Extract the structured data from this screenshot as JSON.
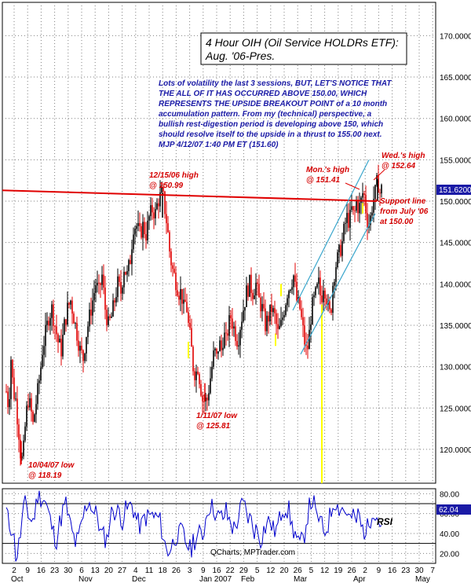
{
  "chart_data": {
    "type": "candlestick",
    "title_line1": "4 Hour OIH (Oil Service HOLDRs ETF):",
    "title_line2": "Aug. '06-Pres.",
    "commentary": [
      "Lots of volatility the last 3 sessions, BUT, LET'S NOTICE THAT",
      "THE ALL OF IT HAS OCCURRED ABOVE 150.00, WHICH",
      "REPRESENTS THE UPSIDE BREAKOUT POINT of a 10 month",
      "accumulation pattern. From my (technical) perspective, a",
      "bullish rest-digestion period is developing above 150, which",
      "should resolve itself to the upside in a thrust to 155.00 next.",
      "MJP  4/12/07  1:40 PM ET (151.60)"
    ],
    "ylim": [
      115,
      172
    ],
    "y_ticks": [
      "120.0000",
      "125.0000",
      "130.0000",
      "135.0000",
      "140.0000",
      "145.0000",
      "150.0000",
      "155.0000",
      "160.0000",
      "165.0000",
      "170.0000"
    ],
    "last_price_label": "151.6200",
    "x_day_ticks": [
      "2",
      "9",
      "16",
      "23",
      "30",
      "6",
      "13",
      "20",
      "27",
      "4",
      "11",
      "18",
      "26",
      "3",
      "9",
      "16",
      "22",
      "29",
      "5",
      "12",
      "20",
      "26",
      "5",
      "12",
      "19",
      "26",
      "2",
      "9",
      "16",
      "23",
      "30",
      "7"
    ],
    "x_months": [
      "Oct",
      "Nov",
      "Dec",
      "Jan 2007",
      "Feb",
      "Mar",
      "Apr",
      "May"
    ],
    "price_path": [
      [
        0,
        127
      ],
      [
        3,
        125
      ],
      [
        6,
        131
      ],
      [
        9,
        127
      ],
      [
        12,
        126
      ],
      [
        15,
        123
      ],
      [
        17,
        121
      ],
      [
        19,
        118.19
      ],
      [
        22,
        120
      ],
      [
        25,
        124
      ],
      [
        28,
        126
      ],
      [
        31,
        125
      ],
      [
        34,
        123
      ],
      [
        37,
        125
      ],
      [
        40,
        127
      ],
      [
        43,
        129
      ],
      [
        46,
        132
      ],
      [
        50,
        134
      ],
      [
        54,
        136
      ],
      [
        58,
        137
      ],
      [
        62,
        135
      ],
      [
        66,
        133
      ],
      [
        70,
        132
      ],
      [
        74,
        135
      ],
      [
        78,
        137
      ],
      [
        82,
        138
      ],
      [
        86,
        136
      ],
      [
        90,
        134
      ],
      [
        94,
        132
      ],
      [
        98,
        131
      ],
      [
        102,
        134
      ],
      [
        106,
        136
      ],
      [
        110,
        138
      ],
      [
        114,
        140
      ],
      [
        118,
        139
      ],
      [
        122,
        141
      ],
      [
        126,
        137
      ],
      [
        130,
        135
      ],
      [
        134,
        136
      ],
      [
        138,
        138
      ],
      [
        142,
        140
      ],
      [
        146,
        139
      ],
      [
        150,
        142
      ],
      [
        154,
        141
      ],
      [
        158,
        143
      ],
      [
        162,
        147
      ],
      [
        166,
        147
      ],
      [
        170,
        146
      ],
      [
        174,
        147
      ],
      [
        178,
        146
      ],
      [
        182,
        148
      ],
      [
        186,
        149
      ],
      [
        190,
        148.5
      ],
      [
        193,
        150
      ],
      [
        196,
        150.5
      ],
      [
        199,
        150.99
      ],
      [
        202,
        149
      ],
      [
        205,
        147
      ],
      [
        208,
        144
      ],
      [
        211,
        142
      ],
      [
        214,
        141
      ],
      [
        217,
        140
      ],
      [
        220,
        139
      ],
      [
        223,
        139
      ],
      [
        226,
        137
      ],
      [
        229,
        138
      ],
      [
        232,
        135
      ],
      [
        235,
        133
      ],
      [
        238,
        130
      ],
      [
        241,
        129
      ],
      [
        244,
        130
      ],
      [
        247,
        128
      ],
      [
        250,
        126
      ],
      [
        253,
        125.81
      ],
      [
        256,
        126
      ],
      [
        259,
        128
      ],
      [
        262,
        130
      ],
      [
        265,
        132
      ],
      [
        268,
        131
      ],
      [
        271,
        133
      ],
      [
        274,
        132
      ],
      [
        277,
        134
      ],
      [
        280,
        133
      ],
      [
        283,
        135
      ],
      [
        286,
        136
      ],
      [
        289,
        135
      ],
      [
        292,
        134
      ],
      [
        295,
        133
      ],
      [
        298,
        135
      ],
      [
        302,
        137
      ],
      [
        306,
        139
      ],
      [
        310,
        140
      ],
      [
        314,
        139
      ],
      [
        318,
        140
      ],
      [
        322,
        138
      ],
      [
        326,
        137
      ],
      [
        330,
        135
      ],
      [
        334,
        136
      ],
      [
        338,
        137
      ],
      [
        342,
        136
      ],
      [
        346,
        134
      ],
      [
        350,
        135
      ],
      [
        354,
        137
      ],
      [
        358,
        139
      ],
      [
        362,
        140
      ],
      [
        366,
        141
      ],
      [
        370,
        138
      ],
      [
        374,
        137
      ],
      [
        377,
        135
      ],
      [
        380,
        133
      ],
      [
        383,
        131.5
      ],
      [
        386,
        134
      ],
      [
        389,
        137
      ],
      [
        392,
        138
      ],
      [
        395,
        139
      ],
      [
        398,
        140
      ],
      [
        401,
        138
      ],
      [
        404,
        140
      ],
      [
        407,
        139
      ],
      [
        410,
        137
      ],
      [
        413,
        136
      ],
      [
        416,
        140
      ],
      [
        419,
        142
      ],
      [
        422,
        143
      ],
      [
        425,
        144
      ],
      [
        428,
        145
      ],
      [
        431,
        147
      ],
      [
        434,
        148
      ],
      [
        437,
        147.5
      ],
      [
        440,
        149
      ],
      [
        443,
        148
      ],
      [
        446,
        150
      ],
      [
        449,
        149
      ],
      [
        452,
        150
      ],
      [
        455,
        151.41
      ],
      [
        458,
        149
      ],
      [
        461,
        147
      ],
      [
        464,
        148
      ],
      [
        467,
        150
      ],
      [
        470,
        151
      ],
      [
        473,
        152.64
      ],
      [
        476,
        151
      ],
      [
        479,
        151.62
      ]
    ],
    "annotations": {
      "low_oct": [
        "10/04/07 low",
        "@ 118.19"
      ],
      "high_dec": [
        "12/15/06 high",
        "@ 150.99"
      ],
      "low_jan": [
        "1/11/07 low",
        "@ 125.81"
      ],
      "mon_high": [
        "Mon.'s high",
        "@ 151.41"
      ],
      "wed_high": [
        "Wed.'s high",
        "@ 152.64"
      ],
      "support": [
        "Support line",
        "from July '06",
        "at 150.00"
      ]
    },
    "rsi": {
      "label": "RSI",
      "ylim": [
        10,
        85
      ],
      "y_ticks": [
        "20.00",
        "40.00",
        "60.00",
        "80.00"
      ],
      "last_value_label": "62.04",
      "guide_levels": [
        30,
        70
      ],
      "credit": "QCharts; MPTrader.com"
    },
    "colors": {
      "up": "#000000",
      "down": "#e00000",
      "resistance": "#e00000",
      "channel": "#3aa6cc",
      "highlight": "#ffff00",
      "rsi_line": "#0000cc",
      "badge": "#1a1aa6"
    }
  }
}
